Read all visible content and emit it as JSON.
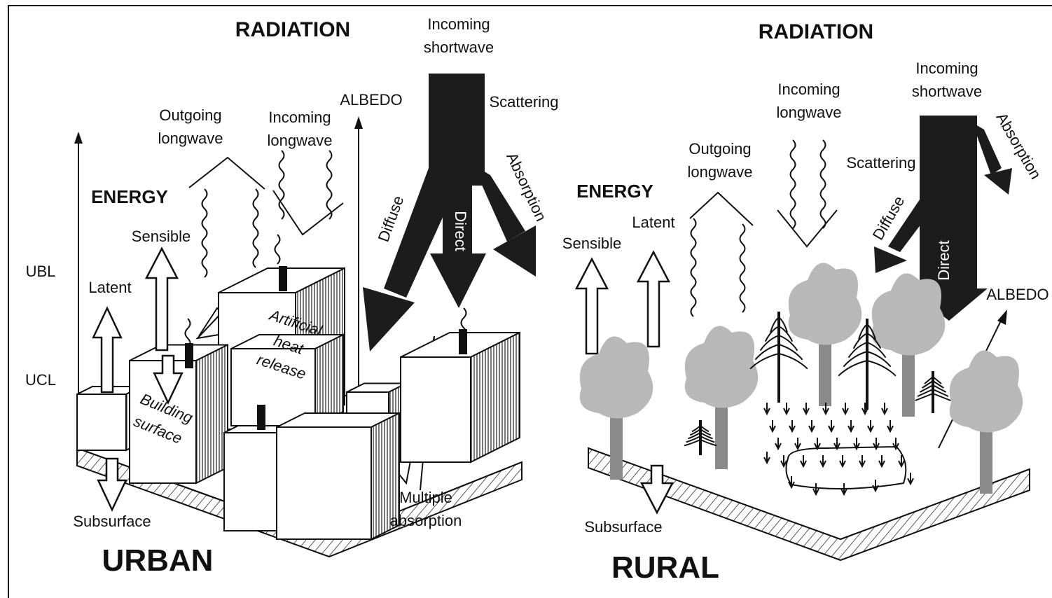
{
  "urban": {
    "radiation": "RADIATION",
    "incoming_shortwave": [
      "Incoming",
      "shortwave"
    ],
    "outgoing_longwave": [
      "Outgoing",
      "longwave"
    ],
    "incoming_longwave": [
      "Incoming",
      "longwave"
    ],
    "albedo": "ALBEDO",
    "scattering": "Scattering",
    "absorption": "Absorption",
    "diffuse": "Diffuse",
    "direct": "Direct",
    "energy": "ENERGY",
    "sensible": "Sensible",
    "latent": "Latent",
    "ubl": "UBL",
    "ucl": "UCL",
    "artificial_heat_release": [
      "Artificial",
      "heat",
      "release"
    ],
    "building_surface": [
      "Building",
      "surface"
    ],
    "multiple_absorption": [
      "Multiple",
      "absorption"
    ],
    "subsurface": "Subsurface",
    "title": "URBAN"
  },
  "rural": {
    "radiation": "RADIATION",
    "incoming_shortwave": [
      "Incoming",
      "shortwave"
    ],
    "absorption": "Absorption",
    "incoming_longwave": [
      "Incoming",
      "longwave"
    ],
    "outgoing_longwave": [
      "Outgoing",
      "longwave"
    ],
    "scattering": "Scattering",
    "diffuse": "Diffuse",
    "direct": "Direct",
    "energy": "ENERGY",
    "latent": "Latent",
    "sensible": "Sensible",
    "albedo": "ALBEDO",
    "subsurface": "Subsurface",
    "title": "RURAL"
  }
}
